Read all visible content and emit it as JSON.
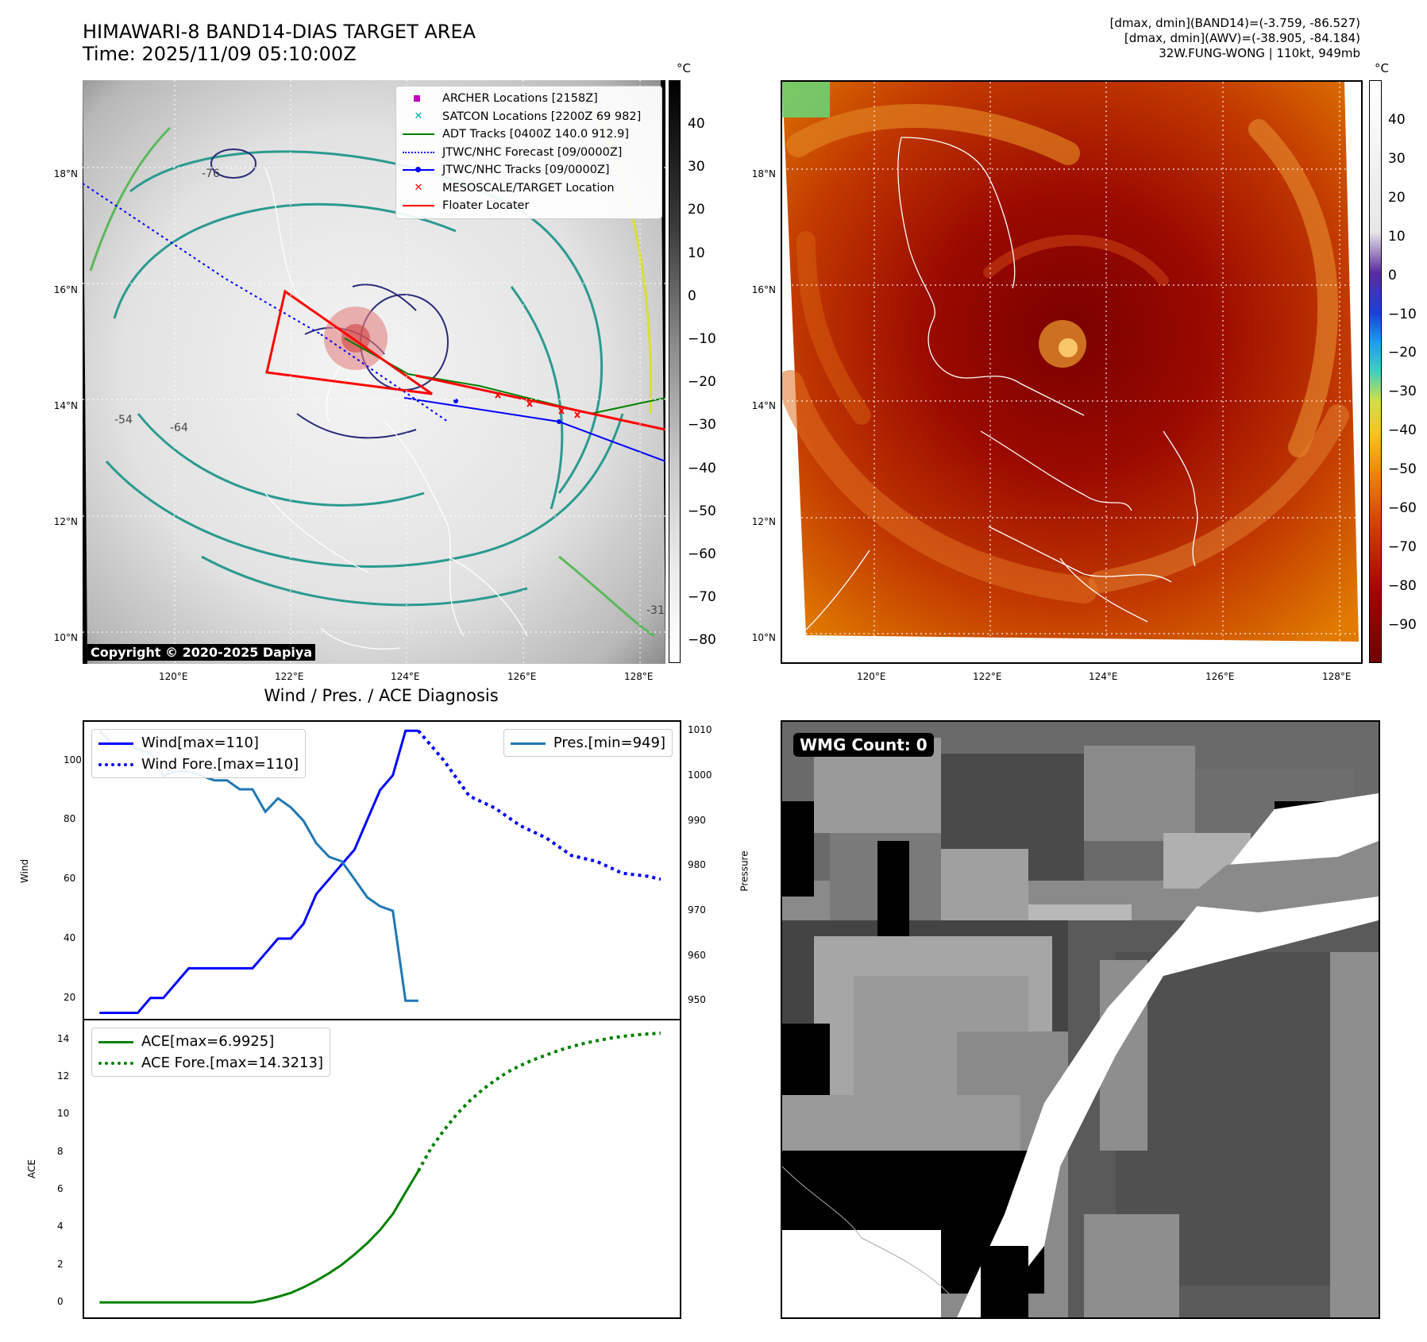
{
  "header": {
    "title_line1": "HIMAWARI-8 BAND14-DIAS TARGET AREA",
    "title_line2": "Time: 2025/11/09 05:10:00Z",
    "info_line1": "[dmax, dmin](BAND14)=(-3.759, -86.527)",
    "info_line2": "[dmax, dmin](AWV)=(-38.905, -84.184)",
    "info_line3": "32W.FUNG-WONG | 110kt, 949mb"
  },
  "map_axes": {
    "lat_labels": [
      "18°N",
      "16°N",
      "14°N",
      "12°N",
      "10°N"
    ],
    "lon_labels": [
      "120°E",
      "122°E",
      "124°E",
      "126°E",
      "128°E"
    ],
    "contour_labels": [
      "-54",
      "-64",
      "-76",
      "-31"
    ]
  },
  "ir_panel": {
    "colorbar_unit": "°C",
    "colorbar_ticks": [
      "40",
      "30",
      "20",
      "10",
      "0",
      "−10",
      "−20",
      "−30",
      "−40",
      "−50",
      "−60",
      "−70",
      "−80"
    ],
    "legend": [
      {
        "label": "ARCHER Locations [2158Z]",
        "marker": "square",
        "color": "#c000c0"
      },
      {
        "label": "SATCON Locations [2200Z 69 982]",
        "marker": "x",
        "color": "#00b0b0"
      },
      {
        "label": "ADT Tracks [0400Z 140.0 912.9]",
        "marker": "line",
        "color": "#008000"
      },
      {
        "label": "JTWC/NHC Forecast [09/0000Z]",
        "marker": "dotted",
        "color": "#0000ff"
      },
      {
        "label": "JTWC/NHC Tracks [09/0000Z]",
        "marker": "line-dot",
        "color": "#0000ff"
      },
      {
        "label": "MESOSCALE/TARGET Location",
        "marker": "x",
        "color": "#ff0000"
      },
      {
        "label": "Floater Locater",
        "marker": "line",
        "color": "#ff0000"
      }
    ],
    "copyright": "Copyright © 2020-2025 Dapiya"
  },
  "awv_panel": {
    "colorbar_unit": "°C",
    "colorbar_ticks": [
      "40",
      "30",
      "20",
      "10",
      "0",
      "−10",
      "−20",
      "−30",
      "−40",
      "−50",
      "−60",
      "−70",
      "−80",
      "−90"
    ]
  },
  "wmg_panel": {
    "label": "WMG Count: 0"
  },
  "chart_data": [
    {
      "type": "line",
      "title": "Wind / Pres. / ACE Diagnosis",
      "ylabel": "Wind",
      "ylabel_right": "Pressure",
      "ylim": [
        13,
        113
      ],
      "ylim_right": [
        946,
        1012
      ],
      "yticks": [
        20,
        40,
        60,
        80,
        100
      ],
      "yticks_right": [
        950,
        960,
        970,
        980,
        990,
        1000,
        1010
      ],
      "x": [
        0,
        1,
        2,
        3,
        4,
        5,
        6,
        7,
        8,
        9,
        10,
        11,
        12,
        13,
        14,
        15,
        16,
        17,
        18,
        19,
        20,
        21,
        22,
        23,
        24,
        25,
        26,
        27,
        28,
        29,
        30,
        31,
        32,
        33,
        34,
        35,
        36,
        37,
        38,
        39,
        40,
        41,
        42,
        43,
        44
      ],
      "series": [
        {
          "name": "Wind[max=110]",
          "axis": "left",
          "style": "solid",
          "color": "#0000ff",
          "x": [
            0,
            1,
            2,
            3,
            4,
            5,
            6,
            7,
            8,
            9,
            10,
            11,
            12,
            13,
            14,
            15,
            16,
            17,
            18,
            19,
            20,
            21,
            22,
            23,
            24,
            25
          ],
          "values": [
            15,
            15,
            15,
            15,
            20,
            20,
            25,
            30,
            30,
            30,
            30,
            30,
            30,
            35,
            40,
            40,
            45,
            55,
            60,
            65,
            70,
            80,
            90,
            95,
            110,
            110
          ]
        },
        {
          "name": "Wind Fore.[max=110]",
          "axis": "left",
          "style": "dotted",
          "color": "#0000ff",
          "x": [
            25,
            27,
            29,
            31,
            33,
            35,
            37,
            39,
            41,
            43,
            44
          ],
          "values": [
            110,
            100,
            88,
            84,
            78,
            74,
            68,
            66,
            62,
            61,
            60
          ]
        },
        {
          "name": "Pres.[min=949]",
          "axis": "right",
          "style": "solid",
          "color": "#1f77b4",
          "x": [
            0,
            1,
            2,
            3,
            4,
            5,
            6,
            7,
            8,
            9,
            10,
            11,
            12,
            13,
            14,
            15,
            16,
            17,
            18,
            19,
            20,
            21,
            22,
            23,
            24,
            25
          ],
          "values": [
            1010,
            1007,
            1007,
            1006,
            1005,
            1000,
            1001,
            1001,
            1000,
            999,
            999,
            997,
            997,
            992,
            995,
            993,
            990,
            985,
            982,
            981,
            977,
            973,
            971,
            970,
            950,
            950
          ]
        }
      ],
      "legend_left": "top-left",
      "legend_right": "top-right"
    },
    {
      "type": "line",
      "ylabel": "ACE",
      "ylim": [
        -0.8,
        15
      ],
      "yticks": [
        0,
        2,
        4,
        6,
        8,
        10,
        12,
        14
      ],
      "series": [
        {
          "name": "ACE[max=6.9925]",
          "style": "solid",
          "color": "#008000",
          "x": [
            0,
            12,
            13,
            14,
            15,
            16,
            17,
            18,
            19,
            20,
            21,
            22,
            23,
            24,
            25
          ],
          "values": [
            0,
            0,
            0.12,
            0.3,
            0.5,
            0.8,
            1.15,
            1.55,
            2.0,
            2.55,
            3.15,
            3.85,
            4.7,
            5.85,
            6.99
          ]
        },
        {
          "name": "ACE Fore.[max=14.3213]",
          "style": "dotted",
          "color": "#008000",
          "x": [
            25,
            26,
            27,
            28,
            29,
            30,
            31,
            32,
            33,
            34,
            35,
            36,
            37,
            38,
            39,
            40,
            41,
            42,
            43,
            44
          ],
          "values": [
            6.99,
            8.2,
            9.15,
            10.0,
            10.7,
            11.3,
            11.8,
            12.25,
            12.6,
            12.9,
            13.15,
            13.4,
            13.6,
            13.78,
            13.92,
            14.05,
            14.15,
            14.22,
            14.28,
            14.32
          ]
        }
      ],
      "legend": "top-left"
    }
  ]
}
